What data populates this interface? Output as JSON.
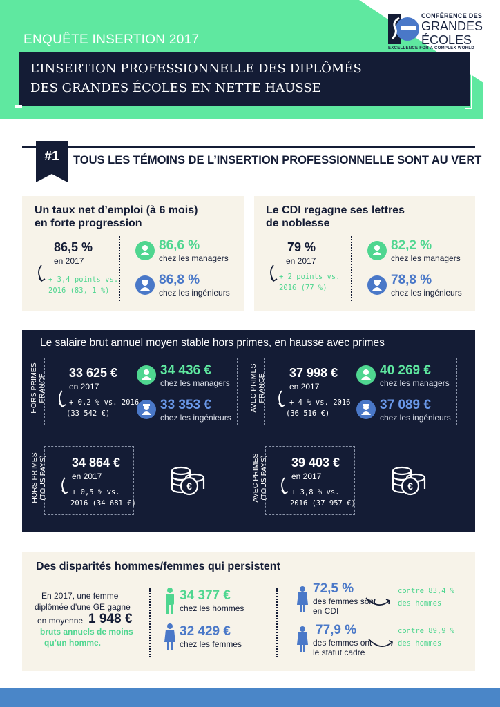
{
  "header": {
    "subtitle": "ENQUÊTE INSERTION 2017",
    "title_line1": "L’INSERTION PROFESSIONNELLE DES DIPLÔMÉS",
    "title_line2": "DES GRANDES ÉCOLES EN NETTE HAUSSE"
  },
  "logo": {
    "line1": "CONFÉRENCE DES",
    "line2": "GRANDES",
    "line3": "ÉCOLES",
    "tagline": "EXCELLENCE FOR A COMPLEX WORLD"
  },
  "section1": {
    "number": "#1",
    "title": "TOUS LES TÉMOINS DE L’INSERTION PROFESSIONNELLE SONT AU VERT"
  },
  "employment": {
    "title_line1": "Un taux net d’emploi (à 6 mois)",
    "title_line2": "en forte progression",
    "main_value": "86,5 %",
    "main_year": "en 2017",
    "delta_line1": "+ 3,4 points vs.",
    "delta_line2": "2016 (83, 1 %)",
    "managers_value": "86,6 %",
    "managers_label": "chez les managers",
    "engineers_value": "86,8 %",
    "engineers_label": "chez les ingénieurs"
  },
  "cdi": {
    "title_line1": "Le CDI regagne ses lettres",
    "title_line2": "de noblesse",
    "main_value": "79 %",
    "main_year": "en 2017",
    "delta_line1": "+ 2 points vs.",
    "delta_line2": "2016 (77 %)",
    "managers_value": "82,2 %",
    "managers_label": "chez les managers",
    "engineers_value": "78,8 %",
    "engineers_label": "chez les ingénieurs"
  },
  "salary": {
    "title": "Le salaire brut annuel moyen stable hors primes, en hausse avec primes",
    "hp_france": {
      "side_label_1": "HORS PRIMES",
      "side_label_2": "FRANCE",
      "value": "33 625 €",
      "year": "en 2017",
      "delta_line1": "+ 0,2 % vs. 2016",
      "delta_line2": "(33 542 €)",
      "managers_value": "34 436 €",
      "managers_label": "chez les managers",
      "engineers_value": "33 353 €",
      "engineers_label": "chez les ingénieurs"
    },
    "ap_france": {
      "side_label_1": "AVEC PRIMES",
      "side_label_2": "FRANCE",
      "value": "37 998 €",
      "year": "en 2017",
      "delta_line1": "+ 4 % vs. 2016",
      "delta_line2": "(36 516 €)",
      "managers_value": "40 269 €",
      "managers_label": "chez les managers",
      "engineers_value": "37 089 €",
      "engineers_label": "chez les ingénieurs"
    },
    "hp_all": {
      "side_label_1": "HORS PRIMES",
      "side_label_2": "(TOUS PAYS)",
      "value": "34 864 €",
      "year": "en 2017",
      "delta_line1": "+ 0,5 % vs.",
      "delta_line2": "2016 (34 681 €)"
    },
    "ap_all": {
      "side_label_1": "AVEC PRIMES",
      "side_label_2": "(TOUS PAYS)",
      "value": "39 403 €",
      "year": "en 2017",
      "delta_line1": "+ 3,8 % vs.",
      "delta_line2": "2016 (37 957 €)"
    }
  },
  "gender": {
    "title": "Des disparités hommes/femmes qui persistent",
    "intro_line1": "En 2017,  une femme",
    "intro_line2": "diplômée d’une GE gagne",
    "intro_line3_pre": "en moyenne",
    "intro_amount": "1 948 €",
    "intro_line4": "bruts annuels de moins",
    "intro_line5": "qu’un homme.",
    "men_salary": "34 377 €",
    "men_label": "chez les hommes",
    "women_salary": "32 429 €",
    "women_label": "chez les femmes",
    "cdi_value": "72,5 %",
    "cdi_line1": "des femmes sont",
    "cdi_line2": "en CDI",
    "cdi_note_line1": "contre 83,4 %",
    "cdi_note_line2": "des hommes",
    "cadre_value": "77,9 %",
    "cadre_line1": "des femmes ont",
    "cadre_line2": "le statut cadre",
    "cadre_note_line1": "contre 89,9 %",
    "cadre_note_line2": "des hommes"
  },
  "colors": {
    "mint": "#5fe8a0",
    "navy": "#141c35",
    "blue": "#4a78c8",
    "cream": "#f7f3e9"
  }
}
